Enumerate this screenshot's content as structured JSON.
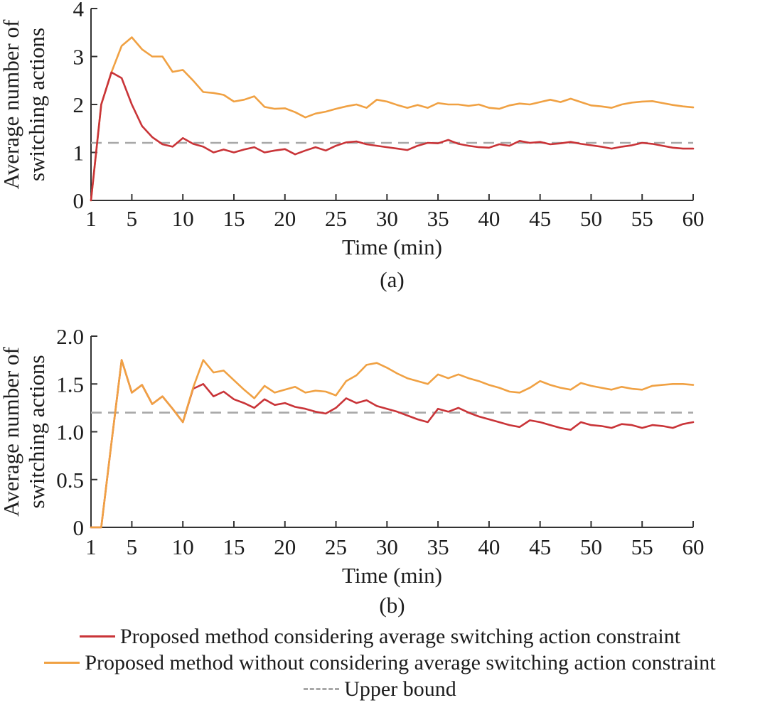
{
  "figure": {
    "background": "#ffffff"
  },
  "colors": {
    "axis": "#333333",
    "text": "#1c1c1c",
    "red": "#C93438",
    "orange": "#F0A143",
    "upper_bound": "#A8A8A8"
  },
  "chart_data": [
    {
      "id": "a",
      "type": "line",
      "caption": "(a)",
      "xlabel": "Time (min)",
      "ylabel": [
        "Average number of",
        "switching actions"
      ],
      "xlim": [
        1,
        60
      ],
      "ylim": [
        0,
        4
      ],
      "xticks": [
        1,
        5,
        10,
        15,
        20,
        25,
        30,
        35,
        40,
        45,
        50,
        55,
        60
      ],
      "yticks": [
        0,
        1,
        2,
        3,
        4
      ],
      "ytick_labels": [
        "0",
        "1",
        "2",
        "3",
        "4"
      ],
      "grid": false,
      "upper_bound": 1.2,
      "x": [
        1,
        2,
        3,
        4,
        5,
        6,
        7,
        8,
        9,
        10,
        11,
        12,
        13,
        14,
        15,
        16,
        17,
        18,
        19,
        20,
        21,
        22,
        23,
        24,
        25,
        26,
        27,
        28,
        29,
        30,
        31,
        32,
        33,
        34,
        35,
        36,
        37,
        38,
        39,
        40,
        41,
        42,
        43,
        44,
        45,
        46,
        47,
        48,
        49,
        50,
        51,
        52,
        53,
        54,
        55,
        56,
        57,
        58,
        59,
        60
      ],
      "series": [
        {
          "id": "without-constraint",
          "name": "Proposed method without considering average switching action constraint",
          "color": "#F0A143",
          "values": [
            0,
            2.0,
            2.67,
            3.22,
            3.4,
            3.15,
            3.0,
            3.0,
            2.68,
            2.72,
            2.5,
            2.26,
            2.24,
            2.2,
            2.06,
            2.1,
            2.17,
            1.95,
            1.91,
            1.92,
            1.84,
            1.73,
            1.81,
            1.85,
            1.91,
            1.96,
            2.0,
            1.93,
            2.1,
            2.06,
            1.99,
            1.93,
            1.99,
            1.93,
            2.03,
            2.0,
            2.0,
            1.97,
            2.0,
            1.93,
            1.91,
            1.98,
            2.02,
            2.0,
            2.05,
            2.1,
            2.05,
            2.12,
            2.05,
            1.98,
            1.96,
            1.93,
            2.0,
            2.04,
            2.06,
            2.07,
            2.03,
            1.99,
            1.96,
            1.94
          ]
        },
        {
          "id": "with-constraint",
          "name": "Proposed method considering average switching action constraint",
          "color": "#C93438",
          "values": [
            0,
            2.0,
            2.67,
            2.55,
            2.0,
            1.55,
            1.32,
            1.17,
            1.12,
            1.3,
            1.18,
            1.12,
            1.0,
            1.06,
            1.0,
            1.06,
            1.11,
            1.0,
            1.04,
            1.07,
            0.96,
            1.04,
            1.11,
            1.04,
            1.14,
            1.21,
            1.23,
            1.17,
            1.14,
            1.11,
            1.08,
            1.05,
            1.14,
            1.2,
            1.19,
            1.26,
            1.18,
            1.14,
            1.11,
            1.1,
            1.17,
            1.14,
            1.24,
            1.2,
            1.22,
            1.17,
            1.19,
            1.22,
            1.18,
            1.15,
            1.12,
            1.08,
            1.12,
            1.15,
            1.2,
            1.18,
            1.14,
            1.1,
            1.08,
            1.08
          ]
        }
      ]
    },
    {
      "id": "b",
      "type": "line",
      "caption": "(b)",
      "xlabel": "Time (min)",
      "ylabel": [
        "Average number of",
        "switching actions"
      ],
      "xlim": [
        1,
        60
      ],
      "ylim": [
        0,
        2
      ],
      "xticks": [
        1,
        5,
        10,
        15,
        20,
        25,
        30,
        35,
        40,
        45,
        50,
        55,
        60
      ],
      "yticks": [
        0,
        0.5,
        1.0,
        1.5,
        2.0
      ],
      "ytick_labels": [
        "0",
        "0.5",
        "1.0",
        "1.5",
        "2.0"
      ],
      "grid": false,
      "upper_bound": 1.2,
      "x": [
        1,
        2,
        3,
        4,
        5,
        6,
        7,
        8,
        9,
        10,
        11,
        12,
        13,
        14,
        15,
        16,
        17,
        18,
        19,
        20,
        21,
        22,
        23,
        24,
        25,
        26,
        27,
        28,
        29,
        30,
        31,
        32,
        33,
        34,
        35,
        36,
        37,
        38,
        39,
        40,
        41,
        42,
        43,
        44,
        45,
        46,
        47,
        48,
        49,
        50,
        51,
        52,
        53,
        54,
        55,
        56,
        57,
        58,
        59,
        60
      ],
      "series": [
        {
          "id": "with-constraint",
          "name": "Proposed method considering average switching action constraint",
          "color": "#C93438",
          "values": [
            0,
            0,
            0.88,
            1.75,
            1.41,
            1.49,
            1.29,
            1.37,
            1.24,
            1.1,
            1.45,
            1.5,
            1.37,
            1.42,
            1.34,
            1.3,
            1.25,
            1.34,
            1.28,
            1.3,
            1.26,
            1.24,
            1.21,
            1.19,
            1.25,
            1.35,
            1.3,
            1.33,
            1.27,
            1.24,
            1.21,
            1.17,
            1.13,
            1.1,
            1.24,
            1.21,
            1.25,
            1.2,
            1.16,
            1.13,
            1.1,
            1.07,
            1.05,
            1.12,
            1.1,
            1.07,
            1.04,
            1.02,
            1.1,
            1.07,
            1.06,
            1.04,
            1.08,
            1.07,
            1.04,
            1.07,
            1.06,
            1.04,
            1.08,
            1.1
          ]
        },
        {
          "id": "without-constraint",
          "name": "Proposed method without considering average switching action constraint",
          "color": "#F0A143",
          "values": [
            0,
            0,
            0.88,
            1.75,
            1.41,
            1.49,
            1.29,
            1.37,
            1.24,
            1.1,
            1.46,
            1.75,
            1.62,
            1.64,
            1.54,
            1.44,
            1.35,
            1.48,
            1.41,
            1.44,
            1.47,
            1.41,
            1.43,
            1.42,
            1.38,
            1.53,
            1.59,
            1.7,
            1.72,
            1.67,
            1.61,
            1.56,
            1.53,
            1.5,
            1.6,
            1.56,
            1.6,
            1.56,
            1.53,
            1.49,
            1.46,
            1.42,
            1.41,
            1.46,
            1.53,
            1.49,
            1.46,
            1.44,
            1.51,
            1.48,
            1.46,
            1.44,
            1.47,
            1.45,
            1.44,
            1.48,
            1.49,
            1.5,
            1.5,
            1.49
          ]
        }
      ]
    }
  ],
  "legend": {
    "items": [
      {
        "label": "Proposed method considering average switching action constraint",
        "color": "#C93438",
        "style": "solid"
      },
      {
        "label": "Proposed method without considering average switching action constraint",
        "color": "#F0A143",
        "style": "solid"
      },
      {
        "label": "Upper bound",
        "color": "#A8A8A8",
        "style": "dashed"
      }
    ]
  }
}
